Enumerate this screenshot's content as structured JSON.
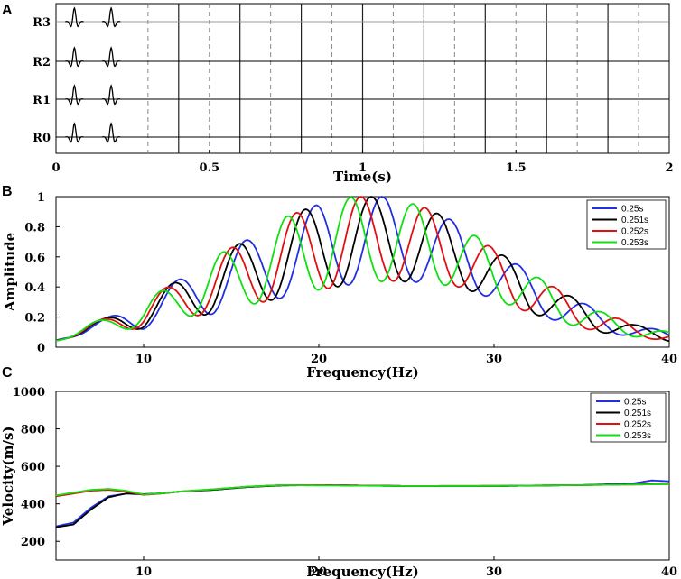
{
  "chart_data": [
    {
      "panel": "A",
      "type": "line",
      "xlabel": "Time(s)",
      "ylabel": "",
      "xlim": [
        0,
        2
      ],
      "x_ticks": [
        "0",
        "0.5",
        "1",
        "1.5",
        "2"
      ],
      "traces": [
        "R0",
        "R1",
        "R2",
        "R3"
      ],
      "pulse_centers_s": [
        0.06,
        0.18
      ],
      "solid_gridlines_s": [
        0.4,
        0.6,
        0.8,
        1.0,
        1.2,
        1.4,
        1.6,
        1.8
      ],
      "dashed_gridlines_s": [
        0.3,
        0.5,
        0.7,
        0.9,
        1.1,
        1.3,
        1.5,
        1.7,
        1.9
      ]
    },
    {
      "panel": "B",
      "type": "line",
      "xlabel": "Frequency(Hz)",
      "ylabel": "Amplitude",
      "xlim": [
        5,
        40
      ],
      "ylim": [
        0,
        1
      ],
      "x_ticks": [
        "10",
        "20",
        "30",
        "40"
      ],
      "y_ticks": [
        "0",
        "0.2",
        "0.4",
        "0.6",
        "0.8",
        "1"
      ],
      "legend_position": "top-right",
      "series": [
        {
          "name": "0.25s",
          "color": "#2030e0",
          "peak_freqs": [
            8.0,
            11.9,
            15.8,
            19.8,
            23.6,
            27.5,
            31.4,
            35.3,
            39.2
          ]
        },
        {
          "name": "0.251s",
          "color": "#000000",
          "peak_freqs": [
            7.7,
            11.6,
            15.4,
            19.2,
            23.0,
            26.8,
            30.6,
            34.4,
            38.2
          ]
        },
        {
          "name": "0.252s",
          "color": "#e01010",
          "peak_freqs": [
            7.5,
            11.2,
            15.0,
            18.7,
            22.4,
            26.1,
            29.8,
            33.5,
            37.2
          ]
        },
        {
          "name": "0.253s",
          "color": "#10e010",
          "peak_freqs": [
            7.3,
            10.9,
            14.5,
            18.2,
            21.8,
            25.4,
            29.0,
            32.6,
            36.2
          ]
        }
      ],
      "envelope_upper": [
        [
          5,
          0.05
        ],
        [
          7,
          0.16
        ],
        [
          8,
          0.2
        ],
        [
          10,
          0.3
        ],
        [
          12,
          0.45
        ],
        [
          14,
          0.6
        ],
        [
          16,
          0.72
        ],
        [
          18,
          0.86
        ],
        [
          20,
          0.95
        ],
        [
          22,
          1.0
        ],
        [
          24,
          1.0
        ],
        [
          26,
          0.93
        ],
        [
          28,
          0.82
        ],
        [
          30,
          0.65
        ],
        [
          32,
          0.5
        ],
        [
          34,
          0.36
        ],
        [
          36,
          0.24
        ],
        [
          38,
          0.15
        ],
        [
          40,
          0.1
        ]
      ],
      "envelope_lower": [
        [
          5,
          0.04
        ],
        [
          7,
          0.1
        ],
        [
          8,
          0.12
        ],
        [
          10,
          0.12
        ],
        [
          12,
          0.2
        ],
        [
          14,
          0.22
        ],
        [
          16,
          0.28
        ],
        [
          18,
          0.33
        ],
        [
          20,
          0.38
        ],
        [
          22,
          0.42
        ],
        [
          24,
          0.44
        ],
        [
          26,
          0.43
        ],
        [
          28,
          0.4
        ],
        [
          30,
          0.32
        ],
        [
          32,
          0.23
        ],
        [
          34,
          0.16
        ],
        [
          36,
          0.1
        ],
        [
          38,
          0.07
        ],
        [
          40,
          0.04
        ]
      ]
    },
    {
      "panel": "C",
      "type": "line",
      "xlabel": "Frequency(Hz)",
      "ylabel": "Velocity(m/s)",
      "xlim": [
        5,
        40
      ],
      "ylim": [
        100,
        1000
      ],
      "x_ticks": [
        "10",
        "20",
        "30",
        "40"
      ],
      "y_ticks": [
        "200",
        "400",
        "600",
        "800",
        "1000"
      ],
      "legend_position": "top-right",
      "series": [
        {
          "name": "0.25s",
          "color": "#2030e0",
          "points": [
            [
              5,
              280
            ],
            [
              6,
              300
            ],
            [
              7,
              380
            ],
            [
              8,
              440
            ],
            [
              9,
              455
            ],
            [
              10,
              450
            ],
            [
              11,
              455
            ],
            [
              12,
              465
            ],
            [
              14,
              475
            ],
            [
              16,
              490
            ],
            [
              18,
              500
            ],
            [
              20,
              500
            ],
            [
              25,
              495
            ],
            [
              30,
              495
            ],
            [
              35,
              500
            ],
            [
              38,
              510
            ],
            [
              39,
              525
            ],
            [
              40,
              520
            ]
          ]
        },
        {
          "name": "0.251s",
          "color": "#000000",
          "points": [
            [
              5,
              275
            ],
            [
              6,
              290
            ],
            [
              7,
              370
            ],
            [
              8,
              435
            ],
            [
              9,
              455
            ],
            [
              10,
              452
            ],
            [
              11,
              456
            ],
            [
              12,
              465
            ],
            [
              14,
              475
            ],
            [
              16,
              490
            ],
            [
              18,
              498
            ],
            [
              20,
              500
            ],
            [
              25,
              495
            ],
            [
              30,
              495
            ],
            [
              35,
              500
            ],
            [
              38,
              505
            ],
            [
              40,
              510
            ]
          ]
        },
        {
          "name": "0.252s",
          "color": "#e01010",
          "points": [
            [
              5,
              440
            ],
            [
              6,
              455
            ],
            [
              7,
              470
            ],
            [
              8,
              475
            ],
            [
              9,
              465
            ],
            [
              10,
              448
            ],
            [
              11,
              455
            ],
            [
              12,
              465
            ],
            [
              14,
              478
            ],
            [
              16,
              492
            ],
            [
              18,
              500
            ],
            [
              20,
              500
            ],
            [
              25,
              495
            ],
            [
              30,
              496
            ],
            [
              35,
              500
            ],
            [
              40,
              505
            ]
          ]
        },
        {
          "name": "0.253s",
          "color": "#10e010",
          "points": [
            [
              5,
              445
            ],
            [
              6,
              460
            ],
            [
              7,
              475
            ],
            [
              8,
              480
            ],
            [
              9,
              470
            ],
            [
              10,
              450
            ],
            [
              11,
              456
            ],
            [
              12,
              466
            ],
            [
              14,
              478
            ],
            [
              16,
              492
            ],
            [
              18,
              500
            ],
            [
              20,
              498
            ],
            [
              25,
              495
            ],
            [
              30,
              496
            ],
            [
              35,
              500
            ],
            [
              40,
              505
            ]
          ]
        }
      ]
    }
  ]
}
